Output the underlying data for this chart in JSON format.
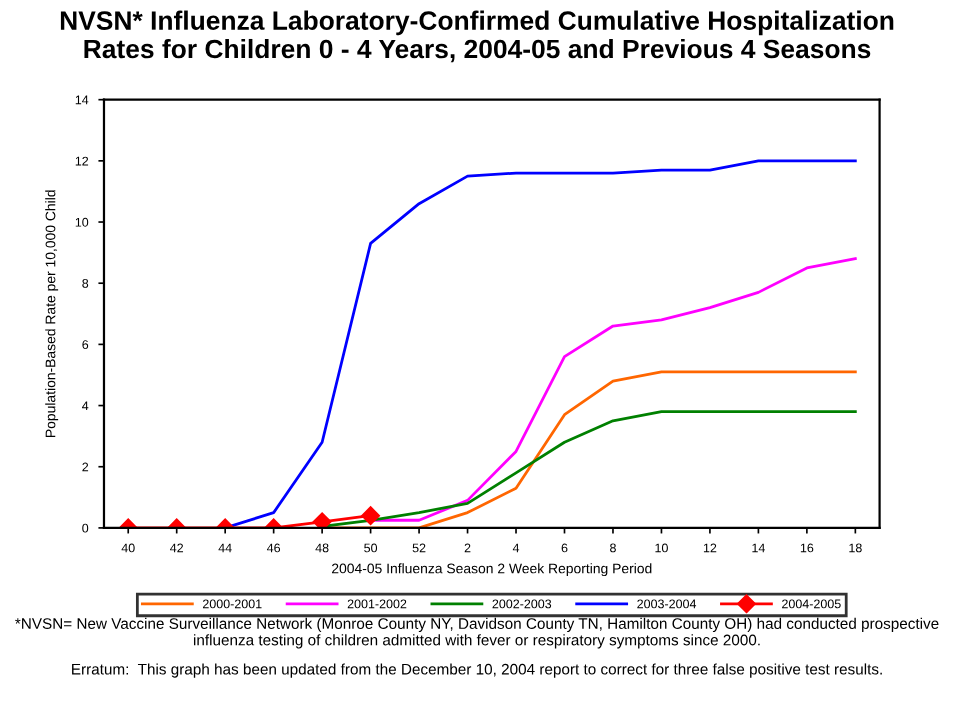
{
  "chart_data": {
    "type": "line",
    "title": "NVSN* Influenza Laboratory-Confirmed Cumulative Hospitalization\nRates for Children 0 - 4 Years, 2004-05 and Previous 4 Seasons",
    "xlabel": "2004-05 Influenza Season 2 Week Reporting Period",
    "ylabel": "Population-Based Rate per 10,000 Child",
    "categories": [
      "40",
      "42",
      "44",
      "46",
      "48",
      "50",
      "52",
      "2",
      "4",
      "6",
      "8",
      "10",
      "12",
      "14",
      "16",
      "18"
    ],
    "series": [
      {
        "name": "2000-2001",
        "color": "#ff6600",
        "values": [
          null,
          null,
          null,
          null,
          0,
          0,
          0,
          0.5,
          1.3,
          3.7,
          4.8,
          5.1,
          5.1,
          5.1,
          5.1,
          5.1
        ]
      },
      {
        "name": "2001-2002",
        "color": "#ff00ff",
        "values": [
          null,
          null,
          null,
          null,
          null,
          0.25,
          0.25,
          0.9,
          2.5,
          5.6,
          6.6,
          6.8,
          7.2,
          7.7,
          8.5,
          8.8
        ]
      },
      {
        "name": "2002-2003",
        "color": "#008000",
        "values": [
          null,
          null,
          null,
          null,
          0.05,
          0.25,
          0.5,
          0.8,
          1.8,
          2.8,
          3.5,
          3.8,
          3.8,
          3.8,
          3.8,
          3.8
        ]
      },
      {
        "name": "2003-2004",
        "color": "#0000ff",
        "values": [
          null,
          null,
          0,
          0.5,
          2.8,
          9.3,
          10.6,
          11.5,
          11.6,
          11.6,
          11.6,
          11.7,
          11.7,
          12.0,
          12.0,
          12.0
        ]
      },
      {
        "name": "2004-2005",
        "color": "#ff0000",
        "marker": "diamond",
        "values": [
          0,
          0,
          0,
          0,
          0.2,
          0.4,
          null,
          null,
          null,
          null,
          null,
          null,
          null,
          null,
          null,
          null
        ]
      }
    ],
    "ylim": [
      0,
      14
    ],
    "yticks": [
      0,
      2,
      4,
      6,
      8,
      10,
      12,
      14
    ],
    "grid": false,
    "legend": "bottom",
    "marker": "none",
    "line_style": "solid",
    "annotations": [
      "*NVSN= New Vaccine Surveillance Network (Monroe County NY, Davidson County TN, Hamilton County OH) had conducted prospective influenza testing of children admitted with fever or respiratory symptoms since 2000.",
      "Erratum:  This graph has been updated from the December 10, 2004 report to correct for three false positive test results."
    ]
  }
}
